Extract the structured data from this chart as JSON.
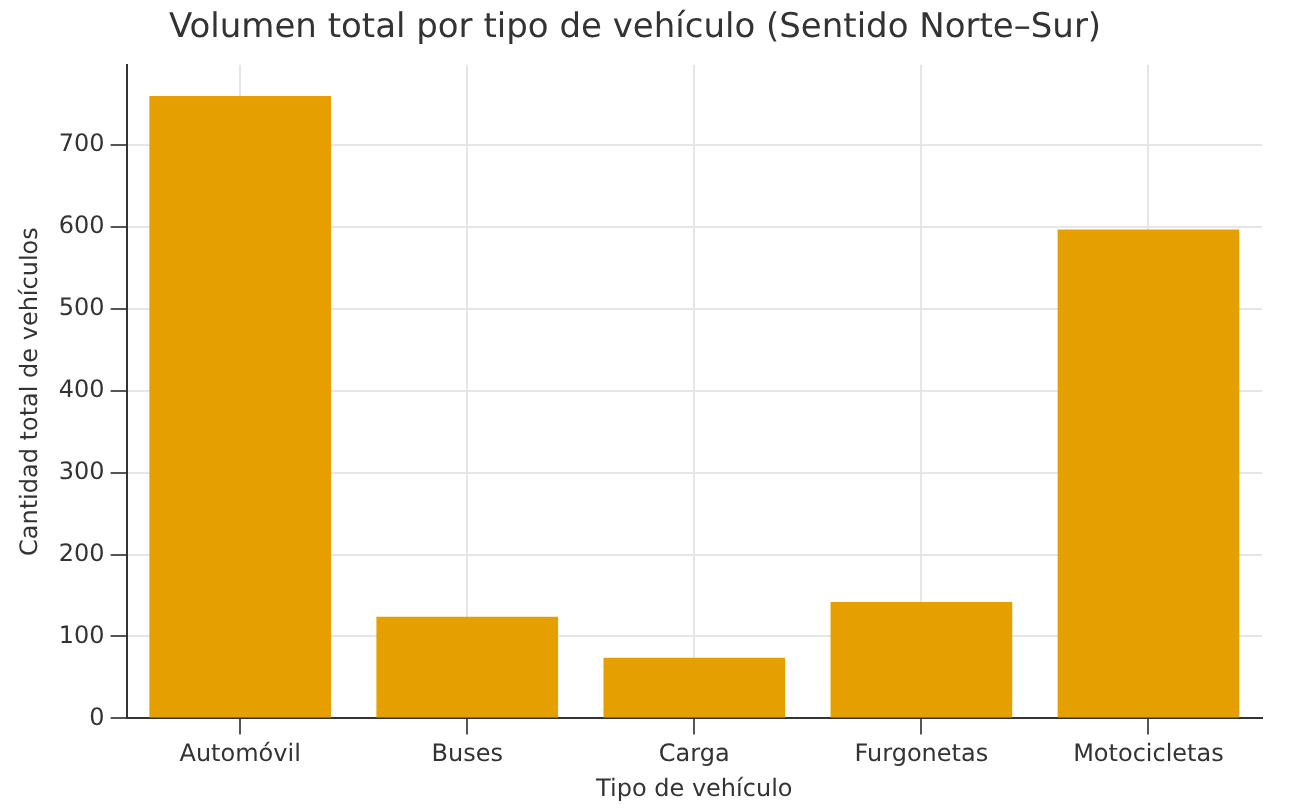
{
  "chart_data": {
    "type": "bar",
    "title": "Volumen total por tipo de vehículo (Sentido Norte–Sur)",
    "xlabel": "Tipo de vehículo",
    "ylabel": "Cantidad total de vehículos",
    "categories": [
      "Automóvil",
      "Buses",
      "Carga",
      "Furgonetas",
      "Motocicletas"
    ],
    "values": [
      760,
      124,
      74,
      142,
      597
    ],
    "color": "#e5a000",
    "ylim": [
      0,
      798
    ],
    "yticks": [
      0,
      100,
      200,
      300,
      400,
      500,
      600,
      700
    ],
    "grid": true
  }
}
